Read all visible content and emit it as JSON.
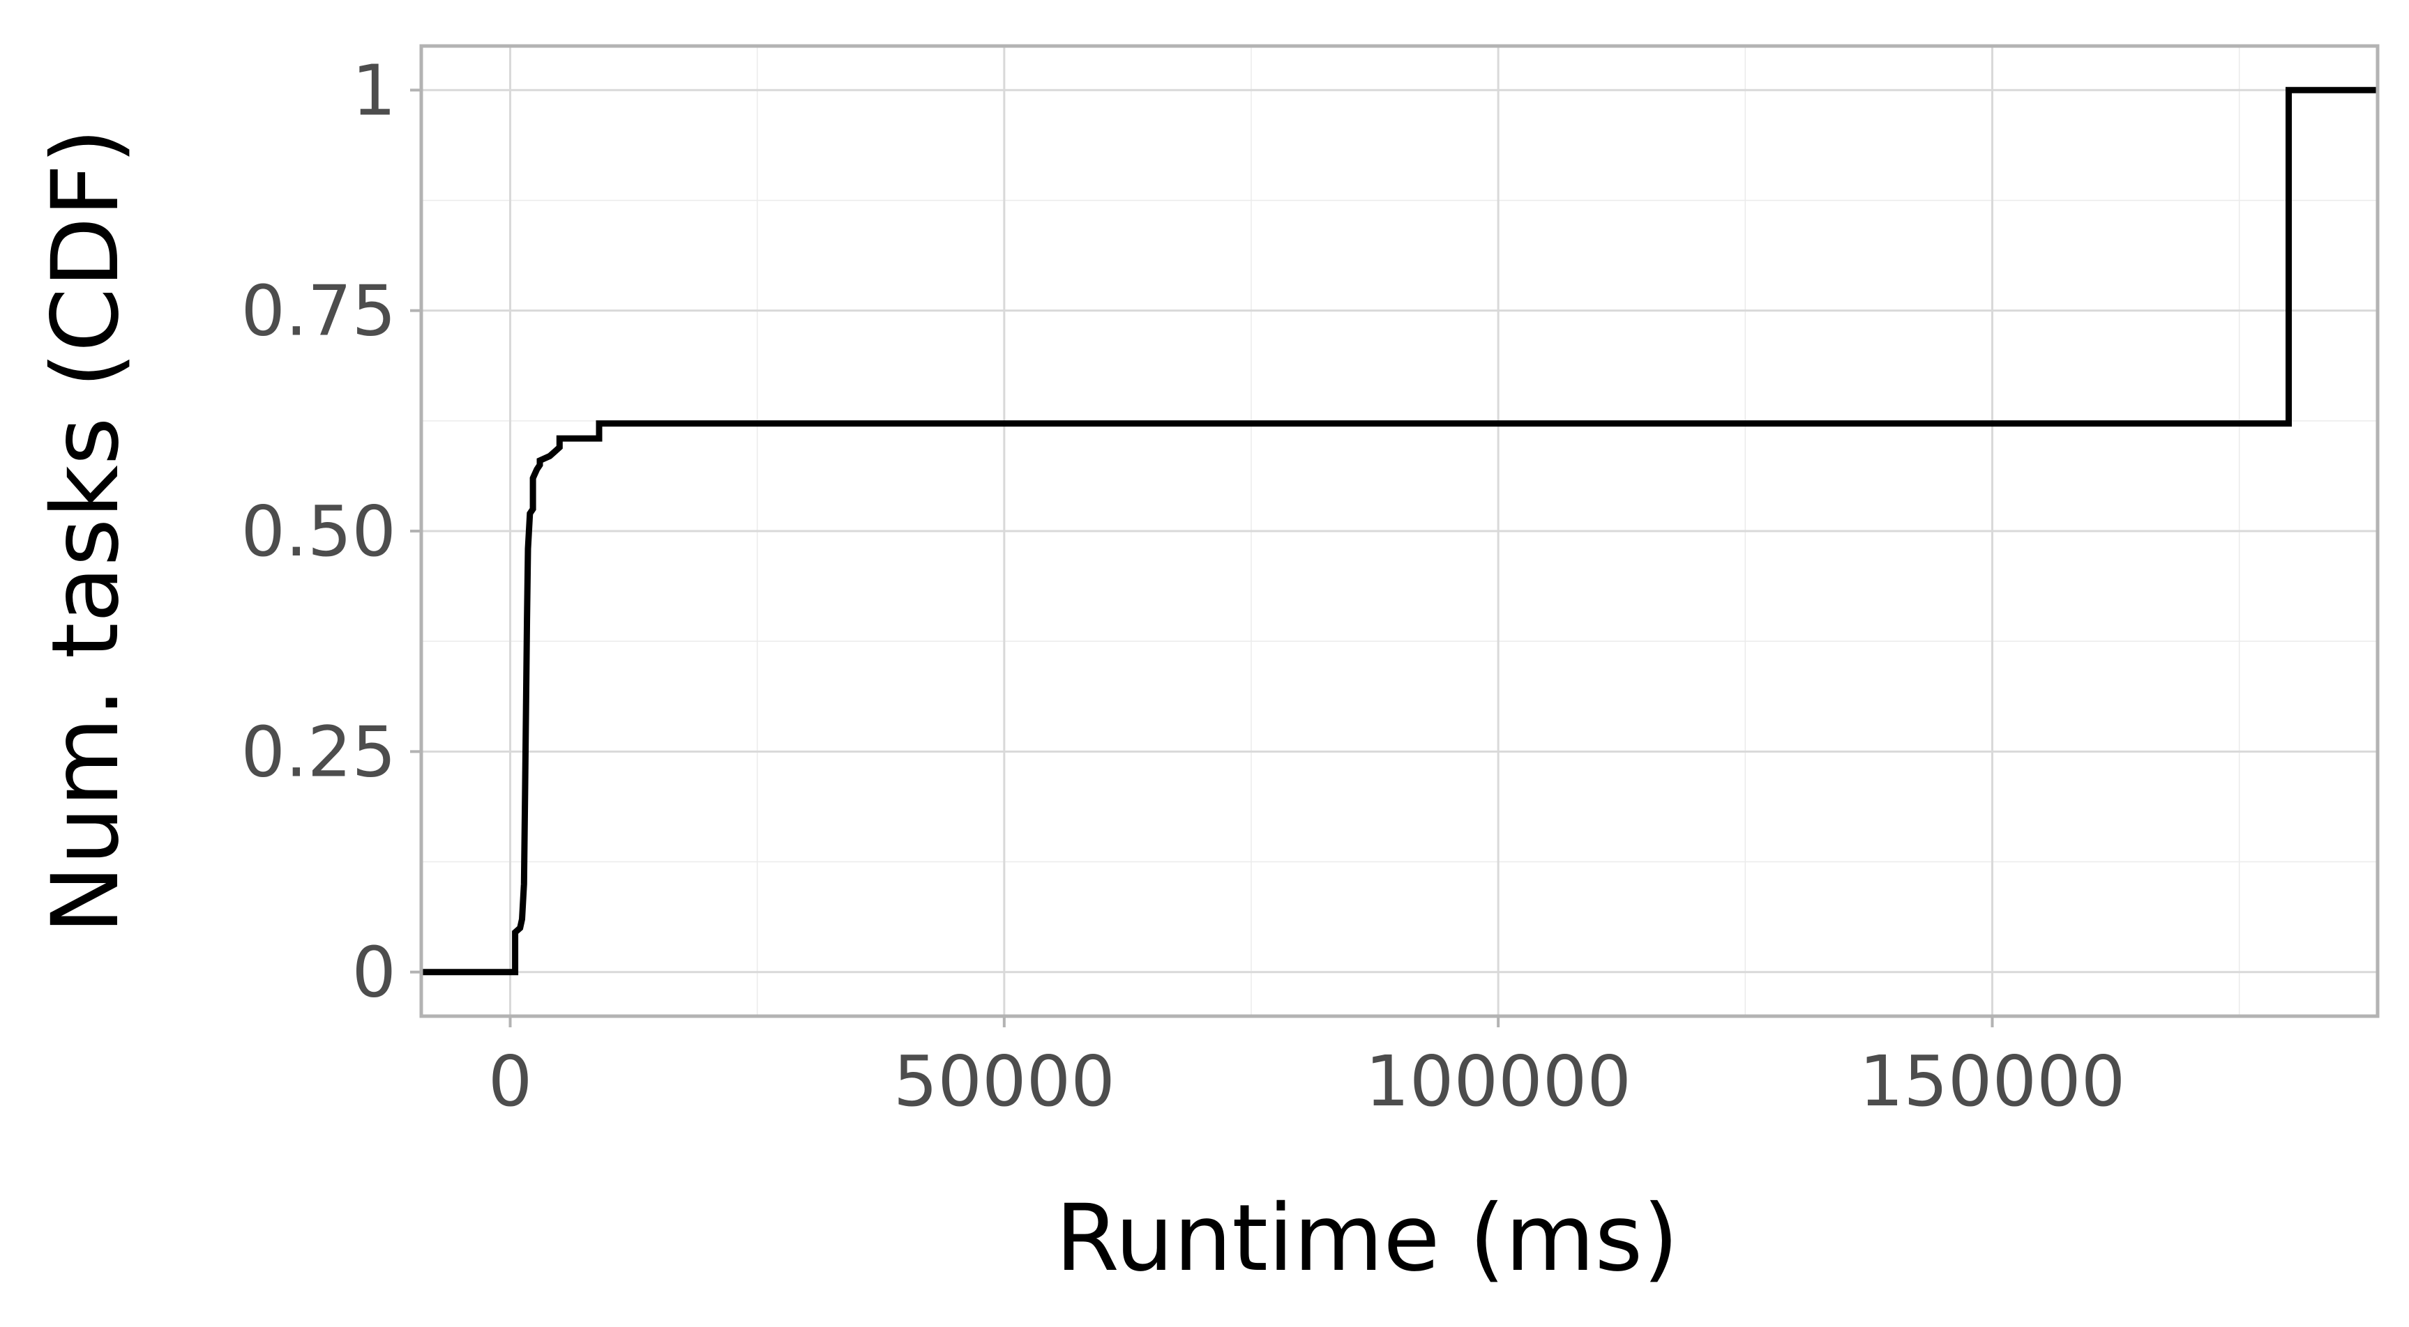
{
  "chart_data": {
    "type": "line",
    "subtype": "step-cdf",
    "title": "",
    "xlabel": "Runtime (ms)",
    "ylabel": "Num. tasks (CDF)",
    "xlim": [
      -9000,
      189000
    ],
    "ylim": [
      -0.05,
      1.05
    ],
    "x_ticks": [
      0,
      50000,
      100000,
      150000
    ],
    "x_tick_labels": [
      "0",
      "50000",
      "100000",
      "150000"
    ],
    "x_minor_ticks": [
      25000,
      75000,
      125000,
      175000
    ],
    "y_ticks": [
      0,
      0.25,
      0.5,
      0.75,
      1
    ],
    "y_tick_labels": [
      "0",
      "0.25",
      "0.50",
      "0.75",
      "1"
    ],
    "y_minor_ticks": [
      0.125,
      0.375,
      0.625,
      0.875
    ],
    "grid": true,
    "legend": "none",
    "line_color": "#000000",
    "series": [
      {
        "points": [
          [
            -9000,
            0
          ],
          [
            500,
            0
          ],
          [
            500,
            0.045
          ],
          [
            1000,
            0.05
          ],
          [
            1200,
            0.06
          ],
          [
            1400,
            0.1
          ],
          [
            1500,
            0.2
          ],
          [
            1600,
            0.3
          ],
          [
            1700,
            0.4
          ],
          [
            1800,
            0.48
          ],
          [
            1900,
            0.5
          ],
          [
            2000,
            0.52
          ],
          [
            2300,
            0.525
          ],
          [
            2300,
            0.56
          ],
          [
            2700,
            0.57
          ],
          [
            3000,
            0.575
          ],
          [
            3000,
            0.58
          ],
          [
            4000,
            0.585
          ],
          [
            4500,
            0.59
          ],
          [
            5000,
            0.595
          ],
          [
            5000,
            0.605
          ],
          [
            9000,
            0.605
          ],
          [
            9000,
            0.622
          ],
          [
            180000,
            0.622
          ],
          [
            180000,
            1
          ],
          [
            189000,
            1
          ]
        ]
      }
    ]
  }
}
